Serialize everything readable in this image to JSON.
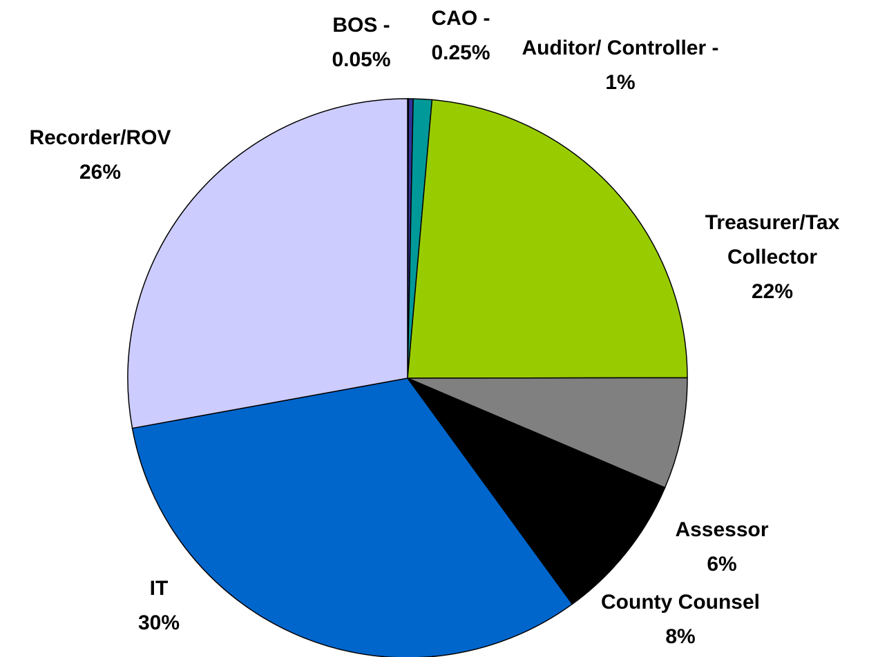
{
  "chart_data": {
    "type": "pie",
    "categories": [
      "BOS -",
      "CAO -",
      "Auditor/ Controller -",
      "Treasurer/Tax Collector",
      "Assessor",
      "County Counsel",
      "IT",
      "Recorder/ROV"
    ],
    "values": [
      0.05,
      0.25,
      1,
      22,
      6,
      8,
      30,
      26
    ],
    "value_labels": [
      "0.05%",
      "0.25%",
      "1%",
      "22%",
      "6%",
      "8%",
      "30%",
      "26%"
    ],
    "colors": [
      "#99ccff",
      "#333399",
      "#009999",
      "#99cc00",
      "#808080",
      "#000000",
      "#0066cc",
      "#ccccff"
    ]
  }
}
